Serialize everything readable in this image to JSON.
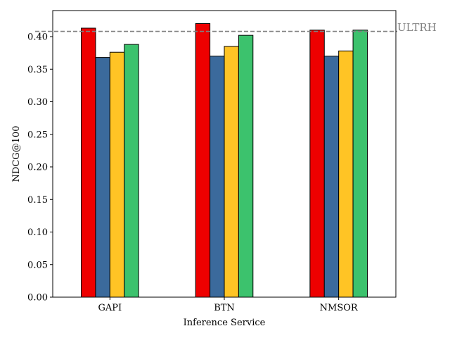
{
  "chart_data": {
    "type": "bar",
    "title": "",
    "xlabel": "Inference Service",
    "ylabel": "NDCG@100",
    "categories": [
      "GAPI",
      "BTN",
      "NMSOR"
    ],
    "ylim": [
      0,
      0.44
    ],
    "yticks": [
      0.0,
      0.05,
      0.1,
      0.15,
      0.2,
      0.25,
      0.3,
      0.35,
      0.4
    ],
    "ytick_labels": [
      "0.00",
      "0.05",
      "0.10",
      "0.15",
      "0.20",
      "0.25",
      "0.30",
      "0.35",
      "0.40"
    ],
    "grid": false,
    "legend": "none",
    "series": [
      {
        "color": "#EE0000",
        "values": [
          0.413,
          0.42,
          0.41
        ]
      },
      {
        "color": "#3B6A9C",
        "values": [
          0.368,
          0.37,
          0.37
        ]
      },
      {
        "color": "#FFC425",
        "values": [
          0.376,
          0.385,
          0.378
        ]
      },
      {
        "color": "#3CC26D",
        "values": [
          0.388,
          0.402,
          0.41
        ]
      }
    ],
    "reference_line": {
      "label": "ULTRH",
      "value": 0.408,
      "color": "#808080",
      "style": "dashed"
    }
  }
}
